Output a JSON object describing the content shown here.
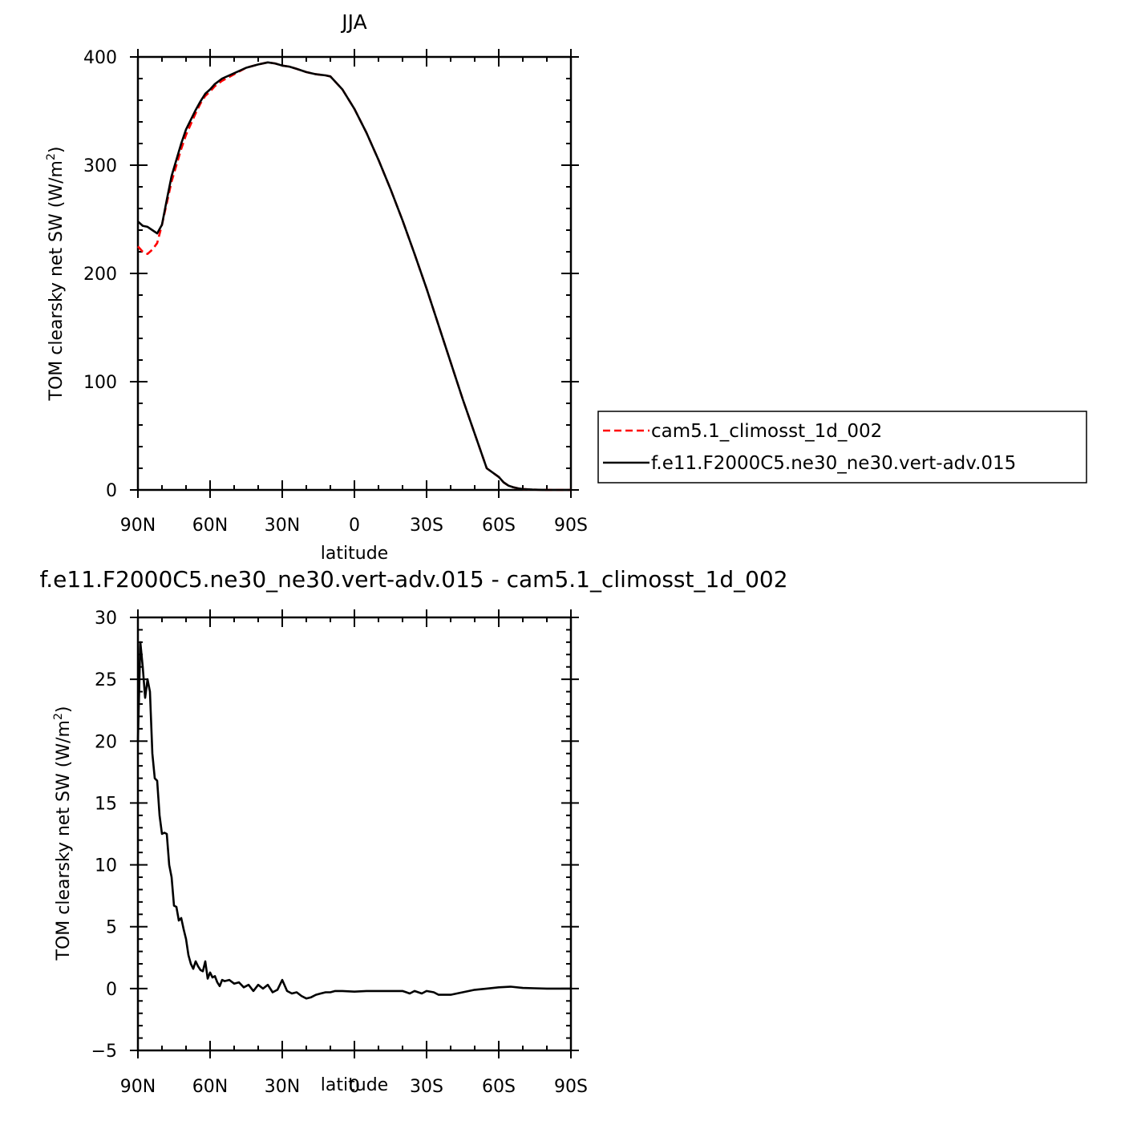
{
  "chart_data": [
    {
      "type": "line",
      "title": "JJA",
      "xlabel": "latitude",
      "ylabel": "TOM clearsky net SW (W/m²)",
      "ylabel_main": "TOM clearsky net SW (W/m",
      "ylabel_sup": "2",
      "ylabel_close": ")",
      "xlim": [
        90,
        -90
      ],
      "ylim": [
        0,
        400
      ],
      "x_ticks": [
        90,
        60,
        30,
        0,
        -30,
        -60,
        -90
      ],
      "x_tick_labels": [
        "90N",
        "60N",
        "30N",
        "0",
        "30S",
        "60S",
        "90S"
      ],
      "y_ticks": [
        0,
        100,
        200,
        300,
        400
      ],
      "y_tick_labels": [
        "0",
        "100",
        "200",
        "300",
        "400"
      ],
      "legend_position": "right",
      "series": [
        {
          "name": "cam5.1_climosst_1d_002",
          "color": "#ff0000",
          "dash": "dashed",
          "x": [
            90,
            88,
            86,
            84,
            82,
            80,
            78,
            76,
            74,
            72,
            70,
            68,
            66,
            64,
            62,
            60,
            58,
            55,
            50,
            45,
            40,
            36,
            33,
            30,
            27,
            24,
            20,
            16,
            12,
            10,
            5,
            0,
            -5,
            -10,
            -15,
            -20,
            -25,
            -30,
            -35,
            -40,
            -45,
            -50,
            -55,
            -60,
            -62,
            -64,
            -66,
            -68,
            -70,
            -74,
            -78,
            -82,
            -86,
            -90
          ],
          "y": [
            225,
            220,
            218,
            222,
            228,
            245,
            265,
            285,
            300,
            315,
            328,
            338,
            348,
            357,
            364,
            368,
            373,
            378,
            384,
            390,
            393,
            395,
            394,
            392,
            391,
            389,
            386,
            384,
            383,
            382,
            370,
            352,
            330,
            305,
            278,
            249,
            218,
            186,
            152,
            118,
            84,
            52,
            20,
            12,
            7,
            4,
            2.5,
            1.5,
            0.8,
            0.3,
            0.1,
            0,
            0,
            0
          ]
        },
        {
          "name": "f.e11.F2000C5.ne30_ne30.vert-adv.015",
          "color": "#000000",
          "dash": "solid",
          "x": [
            90,
            88,
            86,
            84,
            82,
            80,
            78,
            76,
            74,
            72,
            70,
            68,
            66,
            64,
            62,
            60,
            58,
            55,
            50,
            45,
            40,
            36,
            33,
            30,
            27,
            24,
            20,
            16,
            12,
            10,
            5,
            0,
            -5,
            -10,
            -15,
            -20,
            -25,
            -30,
            -35,
            -40,
            -45,
            -50,
            -55,
            -60,
            -62,
            -64,
            -66,
            -68,
            -70,
            -74,
            -78,
            -82,
            -86,
            -90
          ],
          "y": [
            248,
            244,
            243,
            240,
            237,
            245,
            268,
            290,
            305,
            320,
            333,
            342,
            351,
            359,
            366,
            370,
            375,
            380,
            385,
            390,
            393,
            395,
            394,
            392,
            391,
            389,
            386,
            384,
            383,
            382,
            370,
            352,
            330,
            305,
            278,
            249,
            218,
            186,
            152,
            118,
            84,
            52,
            20,
            12,
            7,
            4,
            2.5,
            1.5,
            0.8,
            0.3,
            0.1,
            0,
            0,
            0
          ]
        }
      ]
    },
    {
      "type": "line",
      "title": "f.e11.F2000C5.ne30_ne30.vert-adv.015 - cam5.1_climosst_1d_002",
      "xlabel": "latitude",
      "ylabel": "TOM clearsky net SW (W/m²)",
      "ylabel_main": "TOM clearsky net SW (W/m",
      "ylabel_sup": "2",
      "ylabel_close": ")",
      "xlim": [
        90,
        -90
      ],
      "ylim": [
        -5,
        30
      ],
      "x_ticks": [
        90,
        60,
        30,
        0,
        -30,
        -60,
        -90
      ],
      "x_tick_labels": [
        "90N",
        "60N",
        "30N",
        "0",
        "30S",
        "60S",
        "90S"
      ],
      "y_ticks": [
        -5,
        0,
        5,
        10,
        15,
        20,
        25,
        30
      ],
      "y_tick_labels": [
        "−5",
        "0",
        "5",
        "10",
        "15",
        "20",
        "25",
        "30"
      ],
      "series": [
        {
          "color": "#000000",
          "x": [
            90,
            89,
            88,
            87,
            86,
            85,
            84,
            83,
            82,
            81,
            80,
            79,
            78,
            77,
            76,
            75,
            74,
            73,
            72,
            71,
            70,
            69,
            68,
            67,
            66,
            65,
            64,
            63,
            62,
            61,
            60,
            59,
            58,
            57,
            56,
            55,
            54,
            52,
            50,
            48,
            46,
            44,
            42,
            40,
            38,
            36,
            34,
            32,
            30,
            28,
            26,
            24,
            22,
            20,
            18,
            16,
            14,
            12,
            10,
            8,
            5,
            0,
            -5,
            -10,
            -15,
            -20,
            -23,
            -25,
            -28,
            -30,
            -33,
            -35,
            -37,
            -40,
            -45,
            -50,
            -55,
            -60,
            -65,
            -70,
            -75,
            -80,
            -90
          ],
          "y": [
            20,
            28,
            26,
            23.5,
            25,
            24,
            19,
            17,
            16.8,
            14,
            12.5,
            12.6,
            12.5,
            10,
            9,
            6.7,
            6.6,
            5.5,
            5.7,
            4.8,
            4,
            2.7,
            2,
            1.6,
            2.2,
            1.8,
            1.5,
            1.4,
            2.2,
            0.8,
            1.3,
            0.9,
            1,
            0.5,
            0.2,
            0.7,
            0.6,
            0.7,
            0.4,
            0.5,
            0.1,
            0.3,
            -0.2,
            0.3,
            0,
            0.3,
            -0.3,
            -0.1,
            0.7,
            -0.2,
            -0.4,
            -0.3,
            -0.6,
            -0.8,
            -0.7,
            -0.5,
            -0.4,
            -0.3,
            -0.3,
            -0.2,
            -0.2,
            -0.25,
            -0.2,
            -0.2,
            -0.2,
            -0.2,
            -0.4,
            -0.2,
            -0.4,
            -0.2,
            -0.3,
            -0.5,
            -0.5,
            -0.5,
            -0.3,
            -0.1,
            0,
            0.1,
            0.15,
            0.05,
            0.02,
            0,
            0
          ]
        }
      ]
    }
  ]
}
